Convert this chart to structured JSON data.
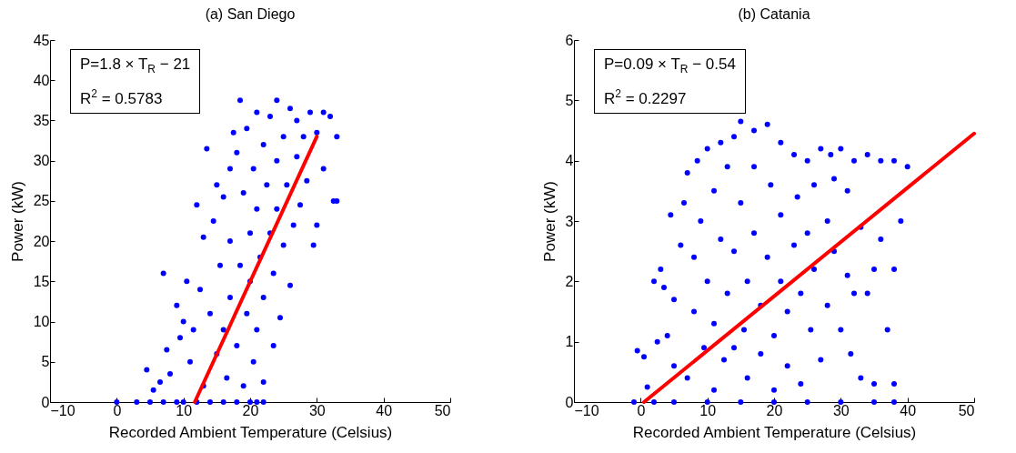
{
  "chart_data": [
    {
      "type": "scatter",
      "title": "(a) San Diego",
      "xlabel": "Recorded Ambient Temperature (Celsius)",
      "ylabel": "Power (kW)",
      "annotations": [
        "P=1.8 × T$_{R}$ − 21",
        "R$^{2}$ = 0.5783"
      ],
      "xlim": [
        -10,
        50
      ],
      "xticks": [
        -10,
        0,
        10,
        20,
        30,
        40,
        50
      ],
      "ylim": [
        0,
        45
      ],
      "yticks": [
        0,
        5,
        10,
        15,
        20,
        25,
        30,
        35,
        40,
        45
      ],
      "series": [
        {
          "color": "#0000ff",
          "marker": "circle",
          "x": [
            0,
            3,
            5,
            7,
            9,
            10,
            12,
            14,
            16,
            18,
            20,
            21,
            22,
            4.5,
            5.5,
            6.5,
            7.5,
            8,
            7,
            9,
            9.5,
            10,
            10.5,
            11,
            11.5,
            12,
            12.5,
            13,
            13,
            13.5,
            14,
            14.5,
            15,
            15,
            15.5,
            16,
            16,
            16.5,
            17,
            17,
            17,
            17.5,
            18,
            18,
            18.5,
            18.5,
            19,
            19,
            19.5,
            19.5,
            20,
            20,
            20.5,
            20.5,
            21,
            21,
            21,
            21.5,
            22,
            22,
            22,
            22.5,
            23,
            23,
            23.5,
            23.5,
            24,
            24,
            24,
            24.5,
            25,
            25,
            25.5,
            26,
            26,
            26.5,
            27,
            27,
            27.5,
            28,
            28.5,
            29,
            29.5,
            30,
            30,
            31,
            31,
            32,
            32.5,
            33,
            33
          ],
          "values": [
            0,
            0,
            0,
            0,
            0,
            0,
            0,
            0,
            0,
            0,
            0,
            0,
            0,
            4,
            1.5,
            2.5,
            6.5,
            3.5,
            16,
            12,
            8,
            10,
            15,
            5,
            9,
            24.5,
            14,
            2,
            20.5,
            31.5,
            11,
            22.5,
            27,
            6,
            17,
            9,
            25.5,
            3,
            29,
            13,
            20,
            33.5,
            7,
            31,
            17,
            37.5,
            26,
            2,
            11,
            34,
            21,
            15,
            5,
            29,
            36,
            24,
            9,
            18,
            32,
            2.5,
            13,
            27,
            35.5,
            21,
            7,
            16,
            37.5,
            30,
            24,
            10.5,
            33,
            19.5,
            27,
            36.5,
            14.5,
            22,
            30.5,
            35,
            24.5,
            33,
            27.5,
            36,
            19.5,
            22,
            33.5,
            29,
            36,
            35.5,
            25,
            33,
            25
          ]
        },
        {
          "type": "line",
          "color": "#ff0000",
          "marker": "none",
          "x": [
            11.7,
            30
          ],
          "values": [
            0,
            33
          ]
        }
      ]
    },
    {
      "type": "scatter",
      "title": "(b) Catania",
      "xlabel": "Recorded Ambient Temperature (Celsius)",
      "ylabel": "Power (kW)",
      "annotations": [
        "P=0.09 × T$_{R}$ − 0.54",
        "R$^{2}$ = 0.2297"
      ],
      "xlim": [
        -10,
        50
      ],
      "xticks": [
        -10,
        0,
        10,
        20,
        30,
        40,
        50
      ],
      "ylim": [
        0,
        6
      ],
      "yticks": [
        0,
        1,
        2,
        3,
        4,
        5,
        6
      ],
      "series": [
        {
          "color": "#0000ff",
          "marker": "circle",
          "x": [
            -1,
            2,
            5,
            10,
            15,
            20,
            25,
            30,
            35,
            38,
            -0.5,
            0.5,
            1,
            2,
            2.5,
            3,
            3.5,
            4,
            4.5,
            5,
            5,
            6,
            6.5,
            7,
            7,
            8,
            8,
            8.5,
            9,
            9.5,
            10,
            10,
            11,
            11,
            11,
            12,
            12,
            12.5,
            13,
            13,
            14,
            14,
            14,
            15,
            15,
            15.5,
            16,
            16,
            17,
            17,
            17,
            18,
            18,
            19,
            19,
            19.5,
            20,
            20,
            21,
            21,
            21,
            22,
            22,
            23,
            23,
            23.5,
            24,
            24,
            25,
            25,
            25.5,
            26,
            26,
            27,
            27,
            28,
            28,
            28.5,
            29,
            29,
            30,
            30,
            31,
            31,
            31.5,
            32,
            32,
            33,
            33,
            34,
            34,
            35,
            35,
            36,
            36,
            37,
            38,
            38,
            39,
            40,
            38
          ],
          "values": [
            0,
            0,
            0,
            0,
            0,
            0,
            0,
            0,
            0,
            0,
            0.85,
            0.75,
            0.25,
            2,
            1,
            2.2,
            1.9,
            1.1,
            3.1,
            1.7,
            0.6,
            2.6,
            3.3,
            3.8,
            0.4,
            2.4,
            1.5,
            4,
            3,
            0.9,
            4.2,
            2,
            3.5,
            1.3,
            0.2,
            4.3,
            2.7,
            0.7,
            3.9,
            1.8,
            4.4,
            2.5,
            0.9,
            4.65,
            3.3,
            1.2,
            2,
            0.4,
            4.5,
            3.9,
            2.8,
            0.8,
            1.6,
            4.6,
            2.4,
            3.6,
            0.2,
            1.1,
            4.3,
            3.1,
            2,
            0.6,
            1.5,
            4.1,
            2.6,
            3.4,
            1.8,
            0.3,
            4,
            2.8,
            1.2,
            3.6,
            2.2,
            4.2,
            0.7,
            3,
            1.6,
            4.1,
            2.5,
            3.7,
            4.2,
            1.2,
            3.5,
            2.1,
            0.8,
            4,
            1.8,
            2.9,
            0.4,
            4.1,
            1.8,
            2.2,
            0.3,
            2.7,
            4,
            1.2,
            4,
            2.2,
            3,
            3.9,
            0.3
          ]
        },
        {
          "type": "line",
          "color": "#ff0000",
          "marker": "none",
          "x": [
            0.5,
            50
          ],
          "values": [
            0,
            4.45
          ]
        }
      ]
    }
  ]
}
